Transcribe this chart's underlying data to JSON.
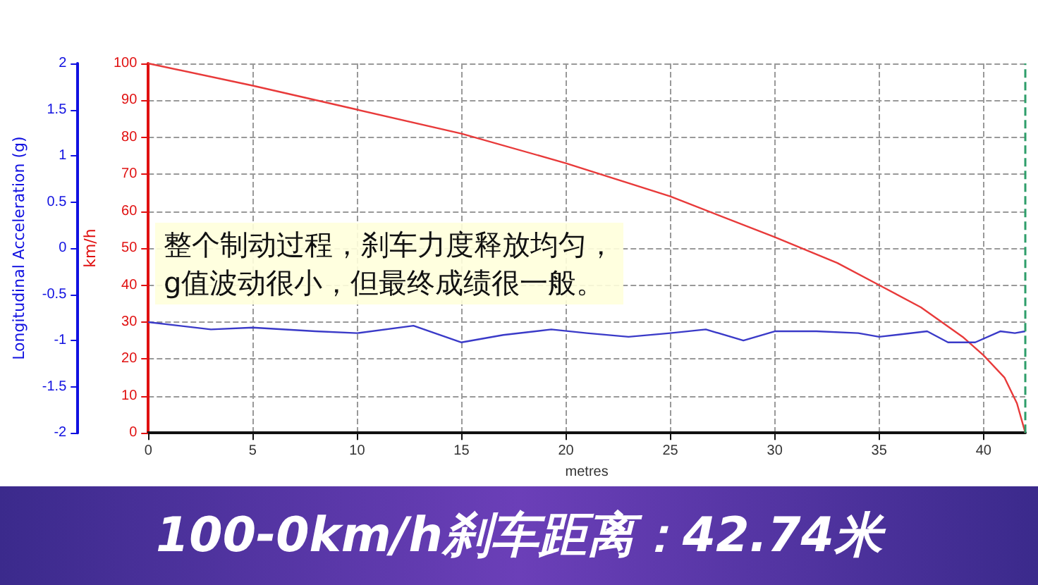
{
  "chart_data": {
    "type": "line",
    "title": "100-0km/h刹车距离：42.74米",
    "xlabel": "metres",
    "ylabel": "Longitudinal Acceleration (g)",
    "y2label": "km/h",
    "annotations": [
      "整个制动过程，刹车力度释放均匀，\ng值波动很小，但最终成绩很一般。"
    ],
    "series": [
      {
        "color": "#e83a3a",
        "axis": "y2",
        "x": [
          0,
          5,
          10,
          15,
          20,
          25,
          30,
          33,
          35,
          37,
          39,
          40,
          41,
          41.6,
          42
        ],
        "values": [
          100,
          94,
          87.5,
          81,
          73,
          64,
          53,
          46,
          40,
          34,
          26,
          21,
          15,
          8,
          0
        ]
      },
      {
        "color": "#3a3ac8",
        "axis": "y",
        "x": [
          0,
          3,
          5,
          8,
          10,
          12.7,
          15,
          17,
          19.3,
          21,
          23,
          25,
          26.7,
          28.5,
          30,
          32,
          34,
          35,
          37.3,
          38.3,
          39.6,
          40.8,
          41.5,
          42
        ],
        "values": [
          -0.8,
          -0.88,
          -0.86,
          -0.9,
          -0.92,
          -0.84,
          -1.02,
          -0.94,
          -0.88,
          -0.92,
          -0.96,
          -0.92,
          -0.88,
          -1.0,
          -0.9,
          -0.9,
          -0.92,
          -0.96,
          -0.9,
          -1.02,
          -1.02,
          -0.9,
          -0.92,
          -0.9
        ]
      }
    ],
    "xlim": [
      0,
      42
    ],
    "xticks": [
      0,
      5,
      10,
      15,
      20,
      25,
      30,
      35,
      40
    ],
    "ylim": [
      -2,
      2
    ],
    "yticks": [
      -2,
      -1.5,
      -1,
      -0.5,
      0,
      0.5,
      1,
      1.5,
      2
    ],
    "y2lim": [
      0,
      100
    ],
    "y2ticks": [
      0,
      10,
      20,
      30,
      40,
      50,
      60,
      70,
      80,
      90,
      100
    ],
    "ref_lines": [
      {
        "axis": "x",
        "value": 42,
        "color": "#2e9e6a",
        "line_style": "dashed"
      }
    ],
    "grid": true,
    "marker": "none",
    "line_style": "solid"
  }
}
